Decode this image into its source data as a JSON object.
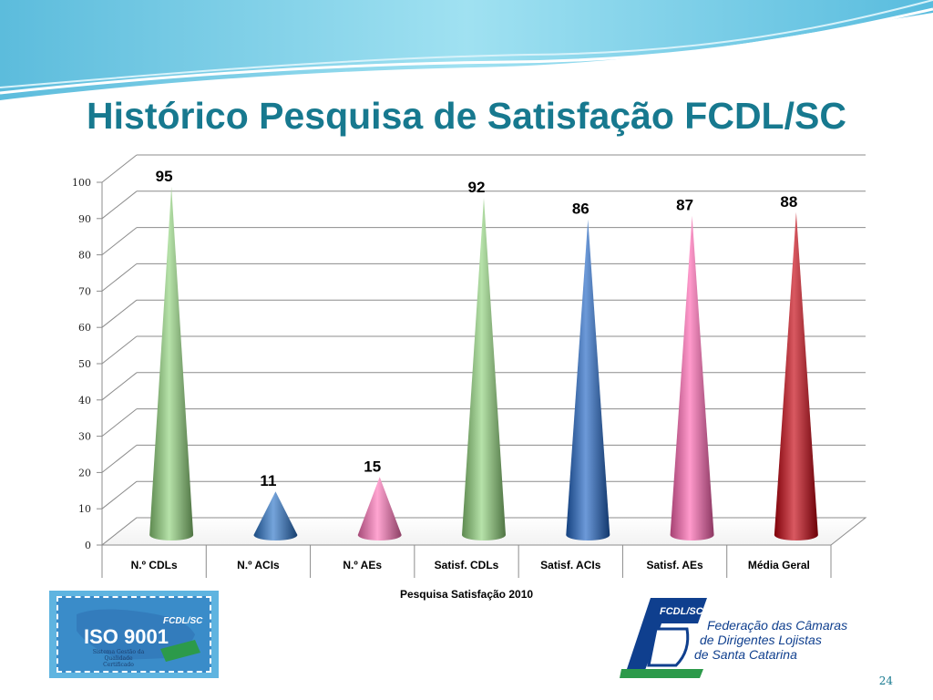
{
  "slide": {
    "title": "Histórico Pesquisa de Satisfação FCDL/SC",
    "page_number": "24"
  },
  "colors": {
    "title": "#17798f",
    "decor_wave": "#6cc6e0"
  },
  "chart_data": {
    "type": "bar",
    "style": "3d-cone",
    "title": "",
    "xlabel": "Pesquisa Satisfação 2010",
    "ylabel": "",
    "ylim": [
      0,
      100
    ],
    "yticks": [
      0,
      10,
      20,
      30,
      40,
      50,
      60,
      70,
      80,
      90,
      100
    ],
    "grid": true,
    "categories": [
      "N.º CDLs",
      "N.º ACIs",
      "N.º AEs",
      "Satisf. CDLs",
      "Satisf. ACIs",
      "Satisf. AEs",
      "Média Geral"
    ],
    "values": [
      95,
      11,
      15,
      92,
      86,
      87,
      88
    ],
    "colors": [
      "#8fd27a",
      "#2a73c8",
      "#ff74b8",
      "#8fd27a",
      "#1e64c4",
      "#ff64b0",
      "#c4000c"
    ]
  },
  "logos": {
    "iso": {
      "name": "ISO 9001",
      "brand": "FCDL/SC",
      "subtitle": "Sistema Gestão da Qualidade Certificado"
    },
    "fcdl": {
      "mark": "FCDL/SC",
      "lines": [
        "Federação das Câmaras",
        "de Dirigentes Lojistas",
        "de Santa Catarina"
      ]
    }
  }
}
